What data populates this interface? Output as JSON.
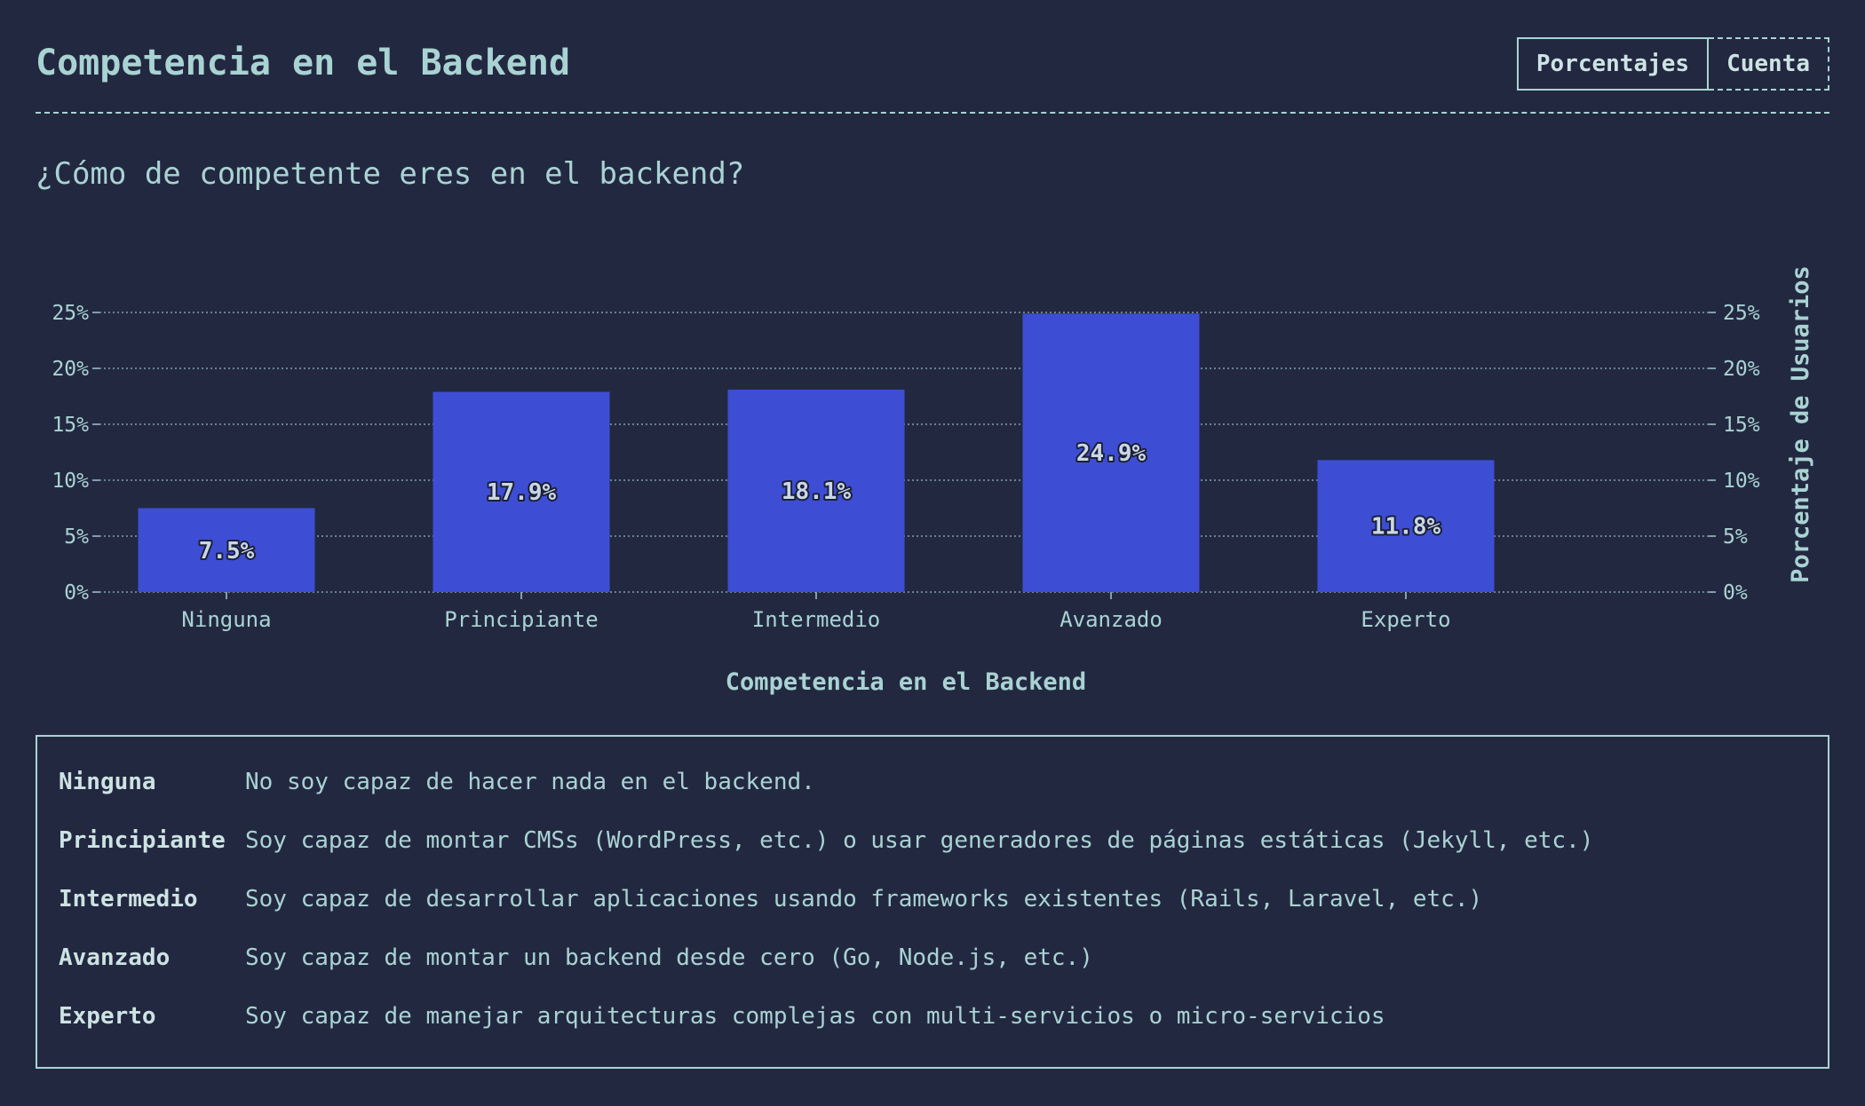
{
  "header": {
    "title": "Competencia en el Backend",
    "toggle": {
      "active_label": "Porcentajes",
      "inactive_label": "Cuenta"
    }
  },
  "question": "¿Cómo de competente eres en el backend?",
  "colors": {
    "background": "#232841",
    "text": "#a9d3d3",
    "bar": "#3d4ed5"
  },
  "chart_data": {
    "type": "bar",
    "categories": [
      "Ninguna",
      "Principiante",
      "Intermedio",
      "Avanzado",
      "Experto"
    ],
    "values": [
      7.5,
      17.9,
      18.1,
      24.9,
      11.8
    ],
    "value_labels": [
      "7.5%",
      "17.9%",
      "18.1%",
      "24.9%",
      "11.8%"
    ],
    "xlabel": "Competencia en el Backend",
    "ylabel": "Porcentaje de Usuarios",
    "ylim": [
      0,
      25
    ],
    "yticks": [
      "0%",
      "5%",
      "10%",
      "15%",
      "20%",
      "25%"
    ],
    "ytick_values": [
      0,
      5,
      10,
      15,
      20,
      25
    ],
    "grid": true,
    "y_axis_both_sides": true
  },
  "legend": [
    {
      "term": "Ninguna",
      "description": "No soy capaz de hacer nada en el backend."
    },
    {
      "term": "Principiante",
      "description": "Soy capaz de montar CMSs (WordPress, etc.) o usar generadores de páginas estáticas (Jekyll, etc.)"
    },
    {
      "term": "Intermedio",
      "description": "Soy capaz de desarrollar aplicaciones usando frameworks existentes (Rails, Laravel, etc.)"
    },
    {
      "term": "Avanzado",
      "description": "Soy capaz de montar un backend desde cero (Go, Node.js, etc.)"
    },
    {
      "term": "Experto",
      "description": "Soy capaz de manejar arquitecturas complejas con multi-servicios o micro-servicios"
    }
  ]
}
